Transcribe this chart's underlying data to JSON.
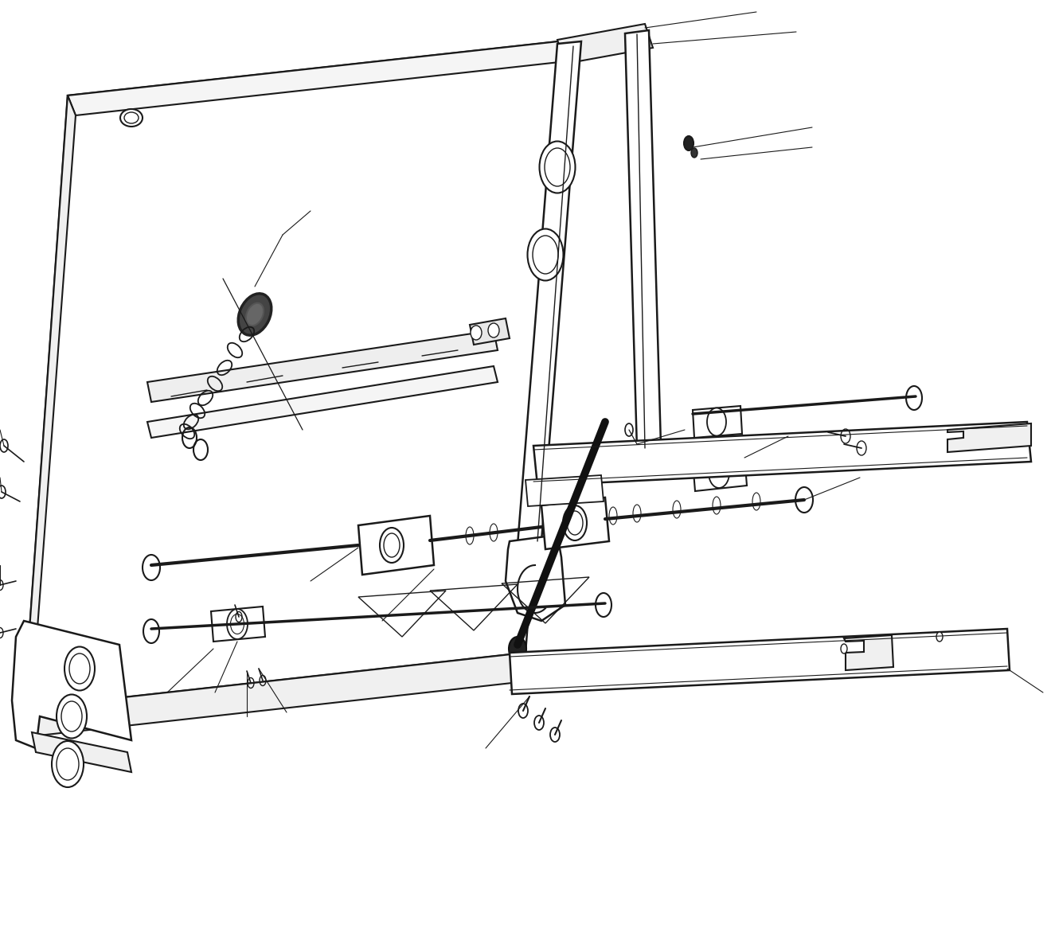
{
  "bg_color": "#ffffff",
  "line_color": "#1a1a1a",
  "lw_main": 1.8,
  "lw_thin": 1.0,
  "lw_leader": 0.8,
  "fig_width": 13.2,
  "fig_height": 11.91,
  "dpi": 100
}
